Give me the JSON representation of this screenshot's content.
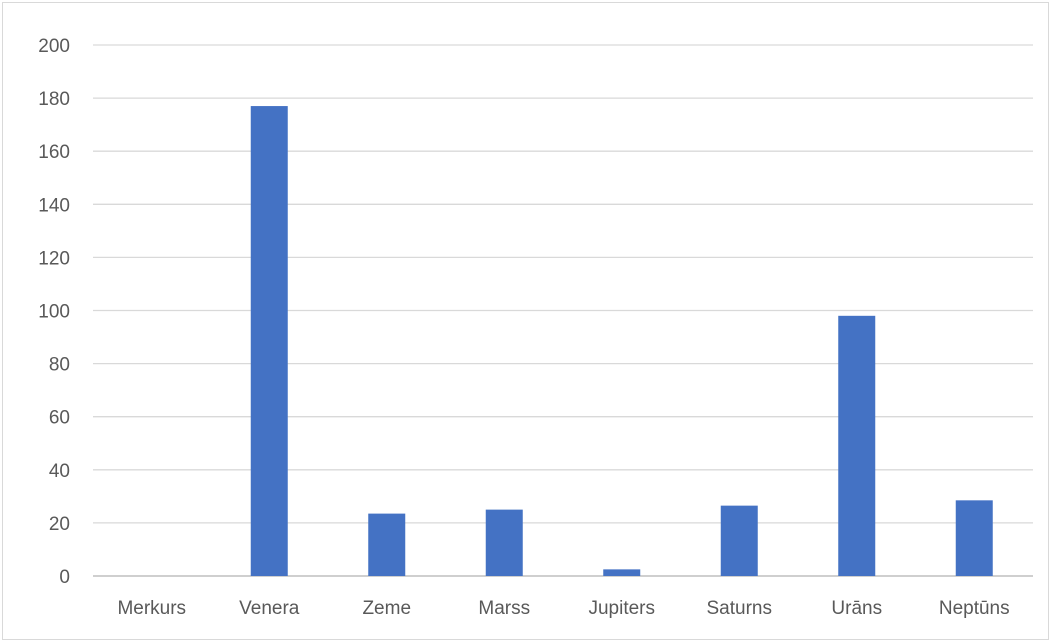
{
  "chart_data": {
    "type": "bar",
    "title": "",
    "xlabel": "",
    "ylabel": "",
    "categories": [
      "Merkurs",
      "Venera",
      "Zeme",
      "Marss",
      "Jupiters",
      "Saturns",
      "Urāns",
      "Neptūns"
    ],
    "values": [
      0,
      177,
      23.5,
      25,
      2.5,
      26.5,
      98,
      28.5
    ],
    "ylim": [
      0,
      200
    ],
    "yticks": [
      "0",
      "20",
      "40",
      "60",
      "80",
      "100",
      "120",
      "140",
      "160",
      "180",
      "200"
    ],
    "grid": true,
    "legend": "none",
    "bar_color": "#4472c4"
  }
}
